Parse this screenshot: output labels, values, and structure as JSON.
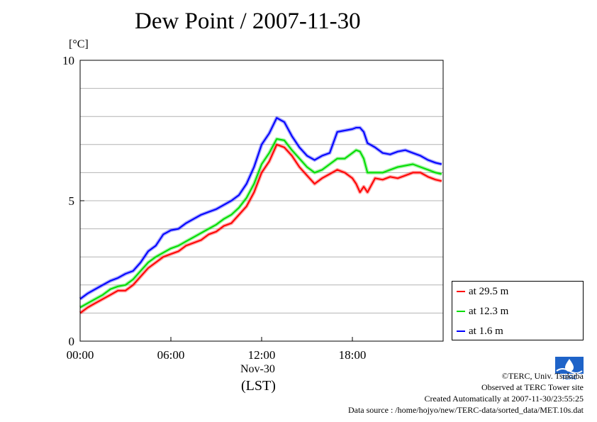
{
  "chart_data": {
    "type": "line",
    "title": "Dew Point / 2007-11-30",
    "ylabel": "[°C]",
    "xlabel": "(LST)",
    "x_date_label": "Nov-30",
    "ylim": [
      0,
      10
    ],
    "xlim": [
      0,
      24
    ],
    "yticks": [
      0,
      5,
      10
    ],
    "xticks": [
      {
        "value": 0,
        "label": "00:00"
      },
      {
        "value": 6,
        "label": "06:00"
      },
      {
        "value": 12,
        "label": "12:00"
      },
      {
        "value": 18,
        "label": "18:00"
      }
    ],
    "grid": "horizontal every 1 °C",
    "legend_position": "bottom-right outside plot",
    "series": [
      {
        "name": "at 29.5 m",
        "color": "#ff0000",
        "x": [
          0,
          0.5,
          1,
          1.5,
          2,
          2.5,
          3,
          3.5,
          4,
          4.5,
          5,
          5.5,
          6,
          6.5,
          7,
          7.5,
          8,
          8.5,
          9,
          9.5,
          10,
          10.5,
          11,
          11.5,
          12,
          12.5,
          13,
          13.5,
          14,
          14.5,
          15,
          15.5,
          16,
          16.5,
          17,
          17.5,
          18,
          18.25,
          18.5,
          18.75,
          19,
          19.5,
          20,
          20.5,
          21,
          21.5,
          22,
          22.5,
          23,
          23.5,
          23.9
        ],
        "y": [
          1.0,
          1.2,
          1.35,
          1.5,
          1.65,
          1.8,
          1.8,
          2.0,
          2.3,
          2.6,
          2.8,
          3.0,
          3.1,
          3.2,
          3.4,
          3.5,
          3.6,
          3.8,
          3.9,
          4.1,
          4.2,
          4.5,
          4.8,
          5.3,
          6.0,
          6.4,
          7.0,
          6.9,
          6.6,
          6.2,
          5.9,
          5.6,
          5.8,
          5.95,
          6.1,
          6.0,
          5.8,
          5.6,
          5.3,
          5.5,
          5.3,
          5.8,
          5.75,
          5.85,
          5.8,
          5.9,
          6.0,
          6.0,
          5.85,
          5.75,
          5.7
        ]
      },
      {
        "name": "at 12.3 m",
        "color": "#00dd00",
        "x": [
          0,
          0.5,
          1,
          1.5,
          2,
          2.5,
          3,
          3.5,
          4,
          4.5,
          5,
          5.5,
          6,
          6.5,
          7,
          7.5,
          8,
          8.5,
          9,
          9.5,
          10,
          10.5,
          11,
          11.5,
          12,
          12.5,
          13,
          13.5,
          14,
          14.5,
          15,
          15.5,
          16,
          16.5,
          17,
          17.5,
          18,
          18.25,
          18.5,
          18.75,
          19,
          19.5,
          20,
          20.5,
          21,
          21.5,
          22,
          22.5,
          23,
          23.5,
          23.9
        ],
        "y": [
          1.2,
          1.35,
          1.5,
          1.65,
          1.85,
          1.95,
          2.0,
          2.2,
          2.5,
          2.8,
          3.0,
          3.15,
          3.3,
          3.4,
          3.55,
          3.7,
          3.85,
          4.0,
          4.15,
          4.35,
          4.5,
          4.75,
          5.1,
          5.6,
          6.3,
          6.7,
          7.2,
          7.15,
          6.8,
          6.5,
          6.2,
          6.0,
          6.1,
          6.3,
          6.5,
          6.5,
          6.7,
          6.8,
          6.75,
          6.5,
          6.0,
          6.0,
          6.0,
          6.1,
          6.2,
          6.25,
          6.3,
          6.2,
          6.1,
          6.0,
          5.95
        ]
      },
      {
        "name": "at 1.6 m",
        "color": "#0000ff",
        "x": [
          0,
          0.5,
          1,
          1.5,
          2,
          2.5,
          3,
          3.5,
          4,
          4.5,
          5,
          5.5,
          6,
          6.5,
          7,
          7.5,
          8,
          8.5,
          9,
          9.5,
          10,
          10.5,
          11,
          11.5,
          12,
          12.5,
          13,
          13.5,
          14,
          14.5,
          15,
          15.5,
          16,
          16.5,
          17,
          17.5,
          18,
          18.25,
          18.5,
          18.75,
          19,
          19.5,
          20,
          20.5,
          21,
          21.5,
          22,
          22.5,
          23,
          23.5,
          23.9
        ],
        "y": [
          1.5,
          1.7,
          1.85,
          2.0,
          2.15,
          2.25,
          2.4,
          2.5,
          2.8,
          3.2,
          3.4,
          3.8,
          3.95,
          4.0,
          4.2,
          4.35,
          4.5,
          4.6,
          4.7,
          4.85,
          5.0,
          5.2,
          5.6,
          6.2,
          7.0,
          7.4,
          7.95,
          7.8,
          7.3,
          6.9,
          6.6,
          6.45,
          6.6,
          6.7,
          7.45,
          7.5,
          7.55,
          7.6,
          7.6,
          7.45,
          7.05,
          6.9,
          6.7,
          6.65,
          6.75,
          6.8,
          6.7,
          6.6,
          6.45,
          6.35,
          6.3
        ]
      }
    ]
  },
  "footer": {
    "copyright": "©TERC, Univ. Tsukuba",
    "observed": "Observed at TERC Tower site",
    "created": "Created Automatically at 2007-11-30/23:55:25",
    "source": "Data source : /home/hojyo/new/TERC-data/sorted_data/MET.10s.dat"
  },
  "logo": {
    "text": "TERC",
    "color": "#1e63c8"
  }
}
